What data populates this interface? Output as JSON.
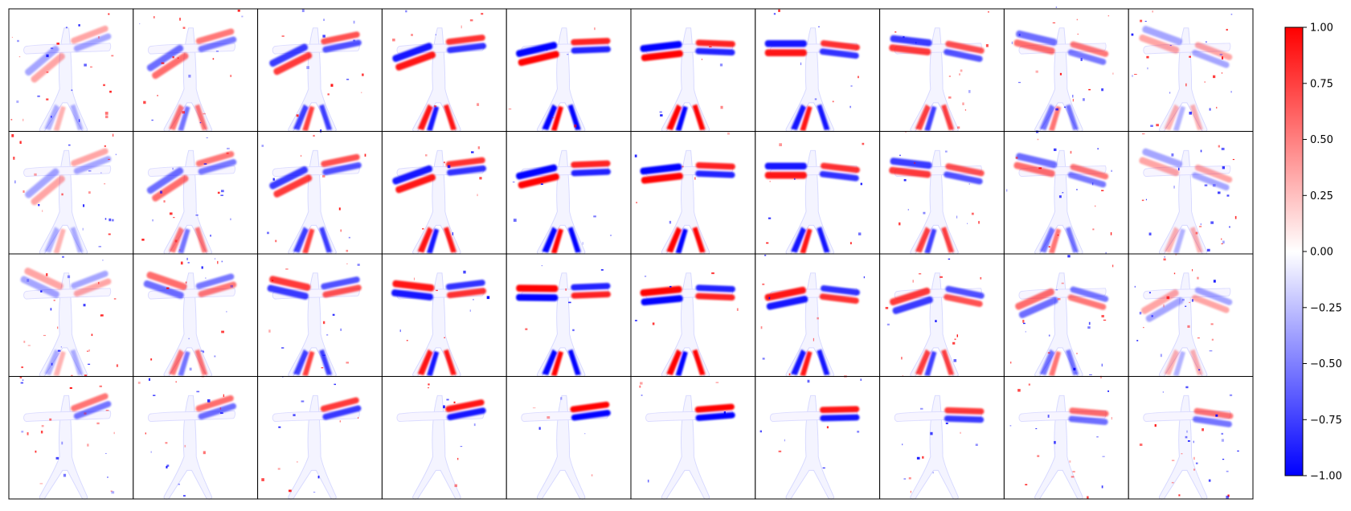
{
  "figure": {
    "grid": {
      "rows": 4,
      "cols": 10
    },
    "panel_background": "#ffffff",
    "panel_border": "#000000",
    "colormap": {
      "name": "bwr",
      "low": "#0000ff",
      "mid": "#ffffff",
      "high": "#ff0000"
    }
  },
  "colorbar": {
    "vmin": -1.0,
    "vmax": 1.0,
    "ticks": [
      {
        "value": 1.0,
        "label": "1.00"
      },
      {
        "value": 0.75,
        "label": "0.75"
      },
      {
        "value": 0.5,
        "label": "0.50"
      },
      {
        "value": 0.25,
        "label": "0.25"
      },
      {
        "value": 0.0,
        "label": "0.00"
      },
      {
        "value": -0.25,
        "label": "−0.25"
      },
      {
        "value": -0.5,
        "label": "−0.50"
      },
      {
        "value": -0.75,
        "label": "−0.75"
      },
      {
        "value": -1.0,
        "label": "−1.00"
      }
    ]
  }
}
